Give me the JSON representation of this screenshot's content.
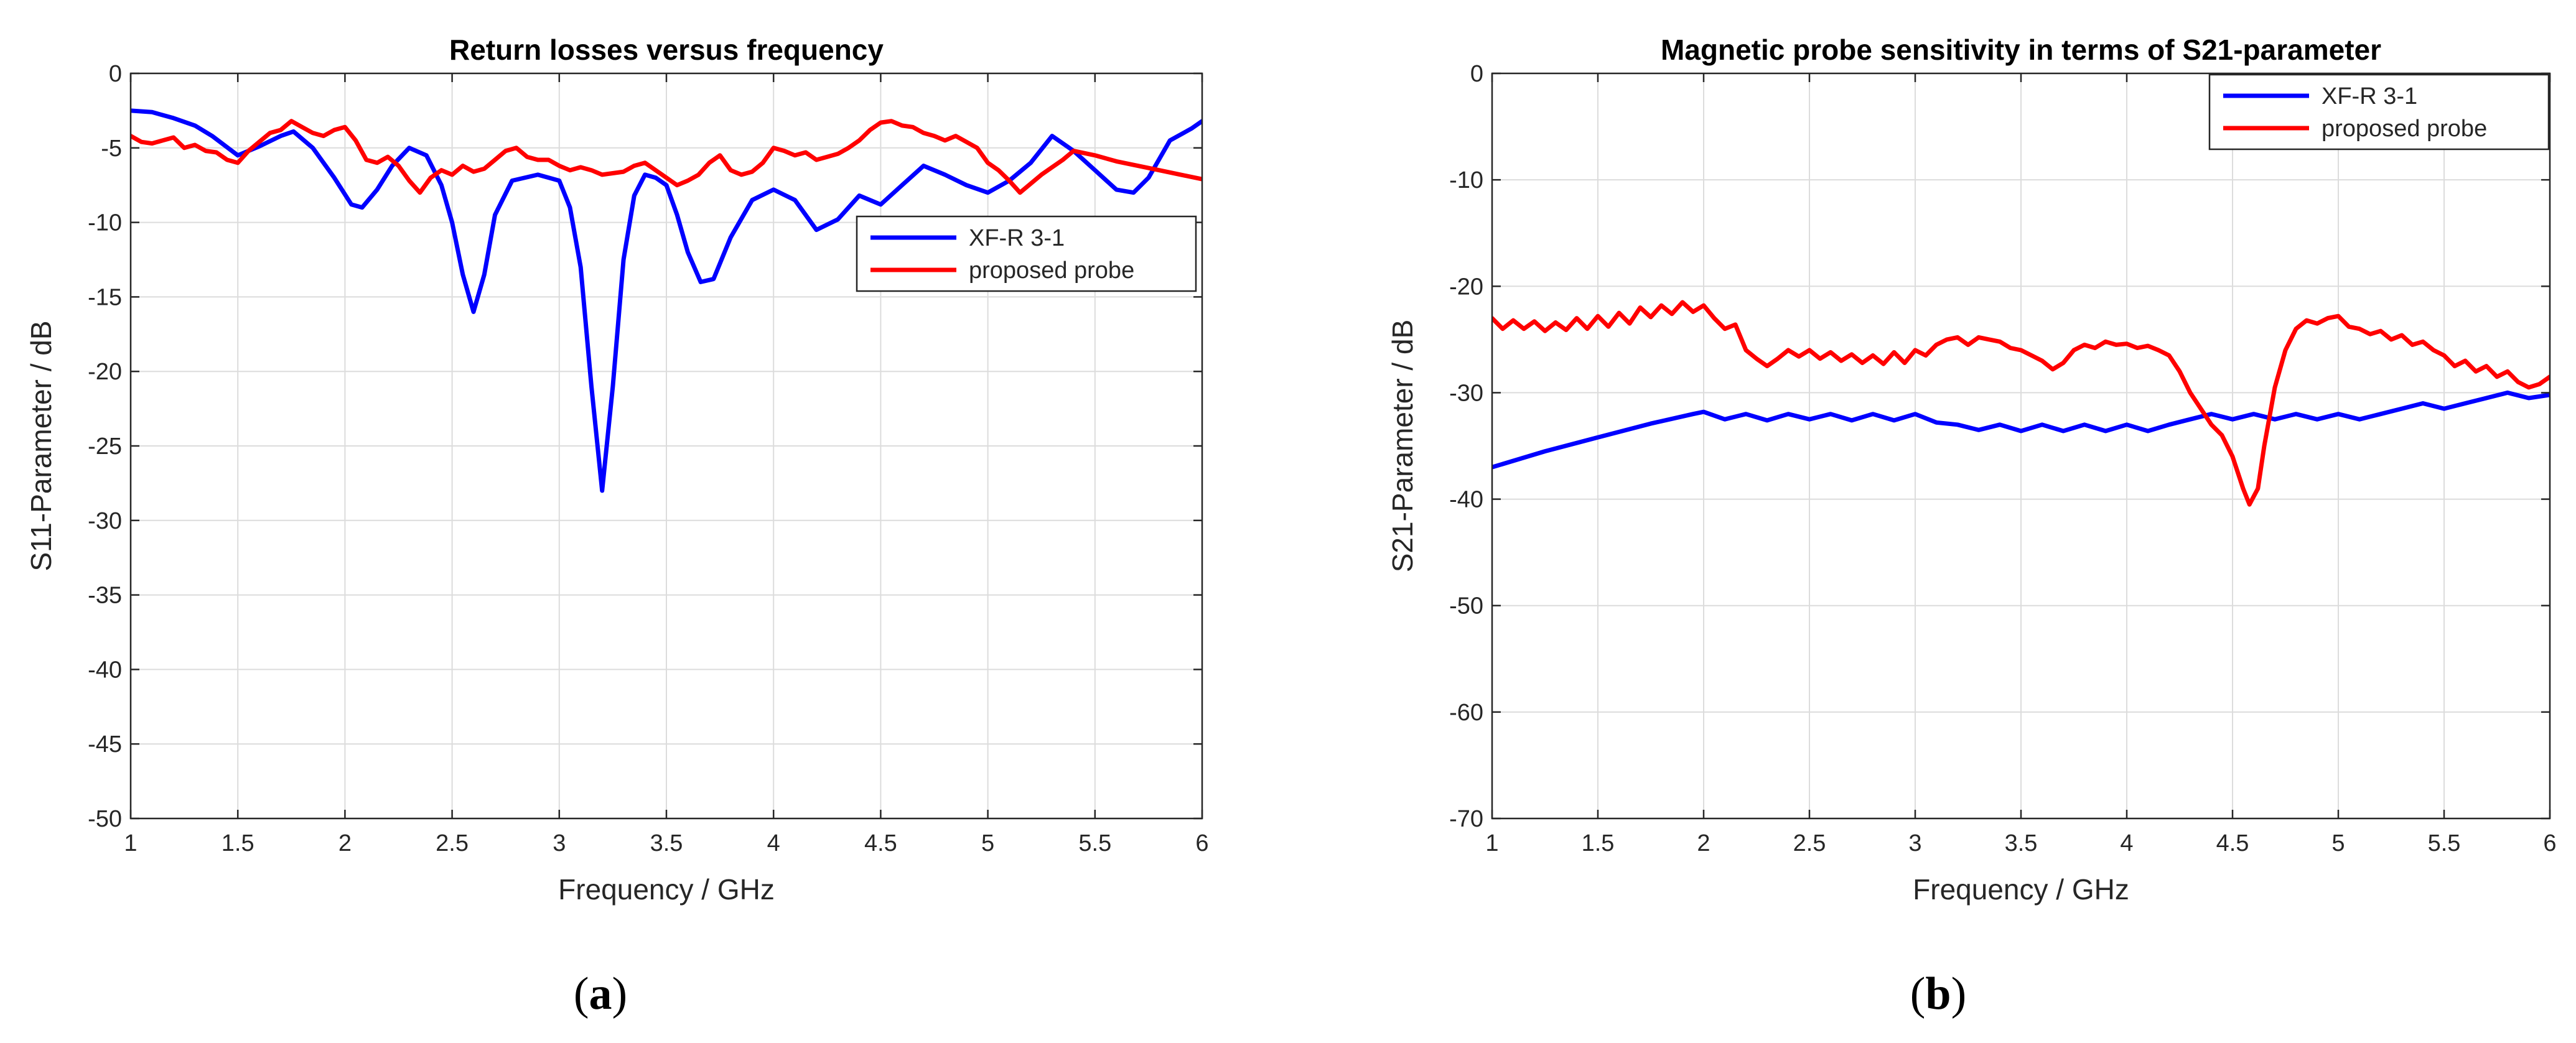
{
  "figure": {
    "panel_a_caption_pre": "(",
    "panel_a_caption_letter": "a",
    "panel_a_caption_post": ")",
    "panel_b_caption_pre": "(",
    "panel_b_caption_letter": "b",
    "panel_b_caption_post": ")"
  },
  "colors": {
    "blue": "#0000ff",
    "red": "#ff0000",
    "grid": "#dcdcdc",
    "axis": "#262626"
  },
  "chart_data": [
    {
      "type": "line",
      "title": "Return losses versus frequency",
      "xlabel": "Frequency / GHz",
      "ylabel": "S11-Parameter / dB",
      "xlim": [
        1,
        6
      ],
      "ylim": [
        -50,
        0
      ],
      "xticks": [
        1,
        1.5,
        2,
        2.5,
        3,
        3.5,
        4,
        4.5,
        5,
        5.5,
        6
      ],
      "xtick_labels": [
        "1",
        "1.5",
        "2",
        "2.5",
        "3",
        "3.5",
        "4",
        "4.5",
        "5",
        "5.5",
        "6"
      ],
      "yticks": [
        0,
        -5,
        -10,
        -15,
        -20,
        -25,
        -30,
        -35,
        -40,
        -45,
        -50
      ],
      "ytick_labels": [
        "0",
        "-5",
        "-10",
        "-15",
        "-20",
        "-25",
        "-30",
        "-35",
        "-40",
        "-45",
        "-50"
      ],
      "grid": true,
      "legend_position": "right-center",
      "series": [
        {
          "name": "XF-R 3-1",
          "color": "#0000ff",
          "x": [
            1.0,
            1.1,
            1.2,
            1.3,
            1.38,
            1.5,
            1.6,
            1.7,
            1.76,
            1.85,
            1.95,
            2.03,
            2.08,
            2.15,
            2.22,
            2.3,
            2.38,
            2.45,
            2.5,
            2.55,
            2.6,
            2.65,
            2.7,
            2.78,
            2.9,
            3.0,
            3.05,
            3.1,
            3.15,
            3.2,
            3.25,
            3.3,
            3.35,
            3.4,
            3.45,
            3.5,
            3.55,
            3.6,
            3.66,
            3.72,
            3.8,
            3.9,
            4.0,
            4.1,
            4.2,
            4.3,
            4.4,
            4.5,
            4.6,
            4.7,
            4.8,
            4.9,
            5.0,
            5.1,
            5.2,
            5.3,
            5.4,
            5.5,
            5.6,
            5.68,
            5.75,
            5.85,
            5.95,
            6.0
          ],
          "y": [
            -2.5,
            -2.6,
            -3.0,
            -3.5,
            -4.2,
            -5.5,
            -4.9,
            -4.2,
            -3.9,
            -5.0,
            -7.0,
            -8.8,
            -9.0,
            -7.8,
            -6.2,
            -5.0,
            -5.5,
            -7.5,
            -10.0,
            -13.5,
            -16.0,
            -13.5,
            -9.5,
            -7.2,
            -6.8,
            -7.2,
            -9.0,
            -13.0,
            -21.0,
            -28.0,
            -21.0,
            -12.5,
            -8.2,
            -6.8,
            -7.0,
            -7.5,
            -9.5,
            -12.0,
            -14.0,
            -13.8,
            -11.0,
            -8.5,
            -7.8,
            -8.5,
            -10.5,
            -9.8,
            -8.2,
            -8.8,
            -7.5,
            -6.2,
            -6.8,
            -7.5,
            -8.0,
            -7.2,
            -6.0,
            -4.2,
            -5.2,
            -6.5,
            -7.8,
            -8.0,
            -7.0,
            -4.5,
            -3.7,
            -3.2
          ]
        },
        {
          "name": "proposed probe",
          "color": "#ff0000",
          "x": [
            1.0,
            1.05,
            1.1,
            1.15,
            1.2,
            1.25,
            1.3,
            1.35,
            1.4,
            1.45,
            1.5,
            1.55,
            1.6,
            1.65,
            1.7,
            1.75,
            1.8,
            1.85,
            1.9,
            1.95,
            2.0,
            2.05,
            2.1,
            2.15,
            2.2,
            2.25,
            2.3,
            2.35,
            2.4,
            2.45,
            2.5,
            2.55,
            2.6,
            2.65,
            2.7,
            2.75,
            2.8,
            2.85,
            2.9,
            2.95,
            3.0,
            3.05,
            3.1,
            3.15,
            3.2,
            3.25,
            3.3,
            3.35,
            3.4,
            3.45,
            3.5,
            3.55,
            3.6,
            3.65,
            3.7,
            3.75,
            3.8,
            3.85,
            3.9,
            3.95,
            4.0,
            4.05,
            4.1,
            4.15,
            4.2,
            4.25,
            4.3,
            4.35,
            4.4,
            4.45,
            4.5,
            4.55,
            4.6,
            4.65,
            4.7,
            4.75,
            4.8,
            4.85,
            4.9,
            4.95,
            5.0,
            5.05,
            5.1,
            5.15,
            5.2,
            5.25,
            5.3,
            5.35,
            5.4,
            5.5,
            5.6,
            5.7,
            5.8,
            5.9,
            6.0
          ],
          "y": [
            -4.2,
            -4.6,
            -4.7,
            -4.5,
            -4.3,
            -5.0,
            -4.8,
            -5.2,
            -5.3,
            -5.8,
            -6.0,
            -5.2,
            -4.6,
            -4.0,
            -3.8,
            -3.2,
            -3.6,
            -4.0,
            -4.2,
            -3.8,
            -3.6,
            -4.5,
            -5.8,
            -6.0,
            -5.6,
            -6.2,
            -7.2,
            -8.0,
            -7.0,
            -6.5,
            -6.8,
            -6.2,
            -6.6,
            -6.4,
            -5.8,
            -5.2,
            -5.0,
            -5.6,
            -5.8,
            -5.8,
            -6.2,
            -6.5,
            -6.3,
            -6.5,
            -6.8,
            -6.7,
            -6.6,
            -6.2,
            -6.0,
            -6.5,
            -7.0,
            -7.5,
            -7.2,
            -6.8,
            -6.0,
            -5.5,
            -6.5,
            -6.8,
            -6.6,
            -6.0,
            -5.0,
            -5.2,
            -5.5,
            -5.3,
            -5.8,
            -5.6,
            -5.4,
            -5.0,
            -4.5,
            -3.8,
            -3.3,
            -3.2,
            -3.5,
            -3.6,
            -4.0,
            -4.2,
            -4.5,
            -4.2,
            -4.6,
            -5.0,
            -6.0,
            -6.5,
            -7.2,
            -8.0,
            -7.4,
            -6.8,
            -6.3,
            -5.8,
            -5.2,
            -5.5,
            -5.9,
            -6.2,
            -6.5,
            -6.8,
            -7.1
          ]
        }
      ]
    },
    {
      "type": "line",
      "title": "Magnetic probe sensitivity in terms of S21-parameter",
      "xlabel": "Frequency / GHz",
      "ylabel": "S21-Parameter / dB",
      "xlim": [
        1,
        6
      ],
      "ylim": [
        -70,
        0
      ],
      "xticks": [
        1,
        1.5,
        2,
        2.5,
        3,
        3.5,
        4,
        4.5,
        5,
        5.5,
        6
      ],
      "xtick_labels": [
        "1",
        "1.5",
        "2",
        "2.5",
        "3",
        "3.5",
        "4",
        "4.5",
        "5",
        "5.5",
        "6"
      ],
      "yticks": [
        0,
        -10,
        -20,
        -30,
        -40,
        -50,
        -60,
        -70
      ],
      "ytick_labels": [
        "0",
        "-10",
        "-20",
        "-30",
        "-40",
        "-50",
        "-60",
        "-70"
      ],
      "grid": true,
      "legend_position": "top-right",
      "series": [
        {
          "name": "XF-R 3-1",
          "color": "#0000ff",
          "x": [
            1.0,
            1.25,
            1.5,
            1.75,
            1.95,
            2.0,
            2.1,
            2.2,
            2.3,
            2.4,
            2.5,
            2.6,
            2.7,
            2.8,
            2.9,
            3.0,
            3.1,
            3.2,
            3.3,
            3.4,
            3.5,
            3.6,
            3.7,
            3.8,
            3.9,
            4.0,
            4.1,
            4.2,
            4.3,
            4.4,
            4.5,
            4.6,
            4.7,
            4.8,
            4.9,
            5.0,
            5.1,
            5.2,
            5.3,
            5.4,
            5.5,
            5.6,
            5.7,
            5.8,
            5.9,
            6.0
          ],
          "y": [
            -37.0,
            -35.5,
            -34.2,
            -32.9,
            -32.0,
            -31.8,
            -32.5,
            -32.0,
            -32.6,
            -32.0,
            -32.5,
            -32.0,
            -32.6,
            -32.0,
            -32.6,
            -32.0,
            -32.8,
            -33.0,
            -33.5,
            -33.0,
            -33.6,
            -33.0,
            -33.6,
            -33.0,
            -33.6,
            -33.0,
            -33.6,
            -33.0,
            -32.5,
            -32.0,
            -32.5,
            -32.0,
            -32.5,
            -32.0,
            -32.5,
            -32.0,
            -32.5,
            -32.0,
            -31.5,
            -31.0,
            -31.5,
            -31.0,
            -30.5,
            -30.0,
            -30.5,
            -30.2
          ]
        },
        {
          "name": "proposed probe",
          "color": "#ff0000",
          "x": [
            1.0,
            1.05,
            1.1,
            1.15,
            1.2,
            1.25,
            1.3,
            1.35,
            1.4,
            1.45,
            1.5,
            1.55,
            1.6,
            1.65,
            1.7,
            1.75,
            1.8,
            1.85,
            1.9,
            1.95,
            2.0,
            2.05,
            2.1,
            2.15,
            2.2,
            2.25,
            2.3,
            2.35,
            2.4,
            2.45,
            2.5,
            2.55,
            2.6,
            2.65,
            2.7,
            2.75,
            2.8,
            2.85,
            2.9,
            2.95,
            3.0,
            3.05,
            3.1,
            3.15,
            3.2,
            3.25,
            3.3,
            3.35,
            3.4,
            3.45,
            3.5,
            3.55,
            3.6,
            3.65,
            3.7,
            3.75,
            3.8,
            3.85,
            3.9,
            3.95,
            4.0,
            4.05,
            4.1,
            4.15,
            4.2,
            4.25,
            4.3,
            4.35,
            4.4,
            4.45,
            4.5,
            4.55,
            4.58,
            4.62,
            4.65,
            4.7,
            4.75,
            4.8,
            4.85,
            4.9,
            4.95,
            5.0,
            5.05,
            5.1,
            5.15,
            5.2,
            5.25,
            5.3,
            5.35,
            5.4,
            5.45,
            5.5,
            5.55,
            5.6,
            5.65,
            5.7,
            5.75,
            5.8,
            5.85,
            5.9,
            5.95,
            6.0
          ],
          "y": [
            -23.0,
            -24.0,
            -23.2,
            -24.0,
            -23.3,
            -24.2,
            -23.4,
            -24.1,
            -23.0,
            -24.0,
            -22.8,
            -23.8,
            -22.5,
            -23.5,
            -22.0,
            -22.9,
            -21.8,
            -22.6,
            -21.5,
            -22.4,
            -21.8,
            -23.0,
            -24.0,
            -23.6,
            -26.0,
            -26.8,
            -27.5,
            -26.8,
            -26.0,
            -26.6,
            -26.0,
            -26.8,
            -26.2,
            -27.0,
            -26.4,
            -27.2,
            -26.5,
            -27.3,
            -26.2,
            -27.2,
            -26.0,
            -26.5,
            -25.5,
            -25.0,
            -24.8,
            -25.5,
            -24.8,
            -25.0,
            -25.2,
            -25.8,
            -26.0,
            -26.5,
            -27.0,
            -27.8,
            -27.2,
            -26.0,
            -25.5,
            -25.8,
            -25.2,
            -25.5,
            -25.4,
            -25.8,
            -25.6,
            -26.0,
            -26.5,
            -28.0,
            -30.0,
            -31.5,
            -33.0,
            -34.0,
            -36.0,
            -39.0,
            -40.5,
            -39.0,
            -35.0,
            -29.5,
            -26.0,
            -24.0,
            -23.2,
            -23.5,
            -23.0,
            -22.8,
            -23.8,
            -24.0,
            -24.5,
            -24.2,
            -25.0,
            -24.6,
            -25.5,
            -25.2,
            -26.0,
            -26.5,
            -27.5,
            -27.0,
            -28.0,
            -27.5,
            -28.5,
            -28.0,
            -29.0,
            -29.5,
            -29.2,
            -28.5
          ]
        }
      ]
    }
  ]
}
